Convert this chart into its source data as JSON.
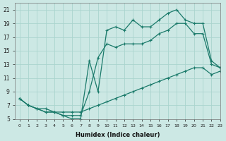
{
  "xlabel": "Humidex (Indice chaleur)",
  "ylabel": "",
  "background_color": "#cce8e4",
  "grid_color": "#aad4ce",
  "line_color": "#1a7a6a",
  "xlim": [
    -0.5,
    23
  ],
  "ylim": [
    5,
    22
  ],
  "xticks": [
    0,
    1,
    2,
    3,
    4,
    5,
    6,
    7,
    8,
    9,
    10,
    11,
    12,
    13,
    14,
    15,
    16,
    17,
    18,
    19,
    20,
    21,
    22,
    23
  ],
  "yticks": [
    5,
    7,
    9,
    11,
    13,
    15,
    17,
    19,
    21
  ],
  "curve1_x": [
    0,
    1,
    2,
    3,
    4,
    5,
    6,
    7,
    8,
    9,
    10,
    11,
    12,
    13,
    14,
    15,
    16,
    17,
    18,
    19,
    20,
    21,
    22,
    23
  ],
  "curve1_y": [
    8.0,
    7.0,
    6.5,
    6.5,
    6.0,
    6.0,
    6.0,
    6.0,
    6.5,
    7.0,
    7.5,
    8.0,
    8.5,
    9.0,
    9.5,
    10.0,
    10.5,
    11.0,
    11.5,
    12.0,
    12.5,
    12.5,
    11.5,
    12.0
  ],
  "curve2_x": [
    0,
    1,
    2,
    3,
    4,
    5,
    6,
    7,
    8,
    9,
    10,
    11,
    12,
    13,
    14,
    15,
    16,
    17,
    18,
    19,
    20,
    21,
    22,
    23
  ],
  "curve2_y": [
    8.0,
    7.0,
    6.5,
    6.0,
    6.0,
    5.5,
    5.5,
    5.5,
    9.0,
    14.0,
    16.0,
    15.5,
    16.0,
    16.0,
    16.0,
    16.5,
    17.5,
    18.0,
    19.0,
    19.0,
    17.5,
    17.5,
    13.0,
    12.5
  ],
  "curve3_x": [
    0,
    1,
    2,
    3,
    4,
    5,
    6,
    7,
    8,
    9,
    10,
    11,
    12,
    13,
    14,
    15,
    16,
    17,
    18,
    19,
    20,
    21,
    22,
    23
  ],
  "curve3_y": [
    8.0,
    7.0,
    6.5,
    6.0,
    6.0,
    5.5,
    5.0,
    5.0,
    13.5,
    9.0,
    18.0,
    18.5,
    18.0,
    19.5,
    18.5,
    18.5,
    19.5,
    20.5,
    21.0,
    19.5,
    19.0,
    19.0,
    13.5,
    12.5
  ]
}
